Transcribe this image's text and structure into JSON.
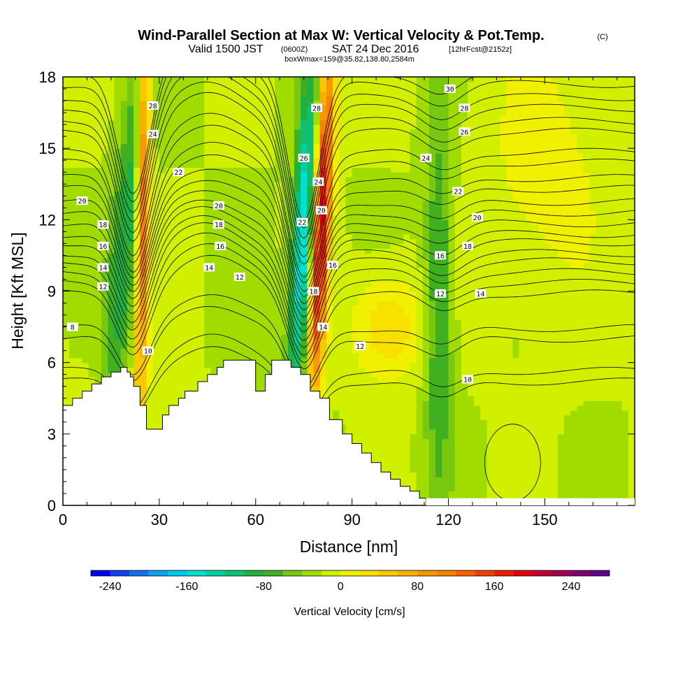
{
  "chart_data": {
    "type": "heatmap",
    "title": "Wind-Parallel Section at Max W: Vertical Velocity & Pot.Temp.",
    "title_mark": "(C)",
    "subtitle": "Valid 1500 JST",
    "subtitle_z": "(0600Z)",
    "subtitle_date": "SAT 24 Dec 2016",
    "subtitle_fcst": "[12hrFcst@2152z]",
    "subtitle2": "boxWmax=159@35.82,138.80,2584m",
    "xlabel": "Distance [nm]",
    "ylabel": "Height [Kft MSL]",
    "xlim": [
      0,
      178
    ],
    "ylim": [
      0,
      18
    ],
    "xticks": [
      0,
      30,
      60,
      90,
      120,
      150
    ],
    "yticks": [
      0,
      3,
      6,
      9,
      12,
      15,
      18
    ],
    "colorbar": {
      "label": "Vertical Velocity [cm/s]",
      "tick_values": [
        -240,
        -160,
        -80,
        0,
        80,
        160,
        240
      ],
      "tick_labels": [
        "-240",
        "-160",
        "-80",
        "0",
        "80",
        "160",
        "240"
      ],
      "min": -260,
      "step": 20,
      "colors": [
        "#0000f0",
        "#1040f0",
        "#1070f0",
        "#10a0f0",
        "#00c8f0",
        "#00e0d0",
        "#00d0a0",
        "#10c070",
        "#20b040",
        "#40b020",
        "#78c810",
        "#a0dc00",
        "#d0f000",
        "#f0f000",
        "#f8e000",
        "#f8c800",
        "#f8b000",
        "#f89800",
        "#f88000",
        "#f86000",
        "#f04000",
        "#e82000",
        "#e00010",
        "#c00030",
        "#a00050",
        "#800070",
        "#600088"
      ]
    },
    "terrain": [
      [
        0,
        4.2
      ],
      [
        3,
        4.2
      ],
      [
        3,
        4.5
      ],
      [
        6,
        4.5
      ],
      [
        6,
        4.8
      ],
      [
        9,
        4.8
      ],
      [
        9,
        5.1
      ],
      [
        12,
        5.1
      ],
      [
        12,
        5.4
      ],
      [
        15,
        5.4
      ],
      [
        15,
        5.6
      ],
      [
        18,
        5.6
      ],
      [
        18,
        5.8
      ],
      [
        20,
        5.8
      ],
      [
        20,
        5.6
      ],
      [
        21,
        5.6
      ],
      [
        21,
        5.4
      ],
      [
        22,
        5.4
      ],
      [
        22,
        5.0
      ],
      [
        24,
        5.0
      ],
      [
        24,
        4.2
      ],
      [
        26,
        4.2
      ],
      [
        26,
        3.2
      ],
      [
        31,
        3.2
      ],
      [
        31,
        3.8
      ],
      [
        33,
        3.8
      ],
      [
        33,
        4.2
      ],
      [
        36,
        4.2
      ],
      [
        36,
        4.5
      ],
      [
        38,
        4.5
      ],
      [
        38,
        4.8
      ],
      [
        42,
        4.8
      ],
      [
        42,
        5.2
      ],
      [
        45,
        5.2
      ],
      [
        45,
        5.5
      ],
      [
        48,
        5.5
      ],
      [
        48,
        5.8
      ],
      [
        50,
        5.8
      ],
      [
        50,
        6.1
      ],
      [
        60,
        6.1
      ],
      [
        60,
        4.8
      ],
      [
        63,
        4.8
      ],
      [
        63,
        5.5
      ],
      [
        65,
        5.5
      ],
      [
        65,
        6.1
      ],
      [
        71,
        6.1
      ],
      [
        71,
        5.8
      ],
      [
        74,
        5.8
      ],
      [
        74,
        5.5
      ],
      [
        77,
        5.5
      ],
      [
        77,
        4.8
      ],
      [
        80,
        4.8
      ],
      [
        80,
        4.5
      ],
      [
        83,
        4.5
      ],
      [
        83,
        3.6
      ],
      [
        87,
        3.6
      ],
      [
        87,
        3.0
      ],
      [
        90,
        3.0
      ],
      [
        90,
        2.6
      ],
      [
        93,
        2.6
      ],
      [
        93,
        2.2
      ],
      [
        96,
        2.2
      ],
      [
        96,
        1.8
      ],
      [
        99,
        1.8
      ],
      [
        99,
        1.4
      ],
      [
        102,
        1.4
      ],
      [
        102,
        1.1
      ],
      [
        105,
        1.1
      ],
      [
        105,
        0.8
      ],
      [
        108,
        0.8
      ],
      [
        108,
        0.6
      ],
      [
        111,
        0.6
      ],
      [
        111,
        0.3
      ],
      [
        113,
        0.3
      ],
      [
        113,
        0
      ]
    ],
    "theta_levels": [
      8,
      10,
      12,
      14,
      16,
      18,
      20,
      22,
      24,
      26,
      28,
      30
    ],
    "theta_base_heights": [
      7.0,
      5.2,
      8.9,
      9.8,
      10.6,
      11.4,
      12.3,
      13.3,
      14.4,
      15.7,
      16.7,
      17.7
    ],
    "contour_labels": [
      {
        "text": "30",
        "x": 120.5,
        "y": 17.5
      },
      {
        "text": "28",
        "x": 28.0,
        "y": 16.8
      },
      {
        "text": "28",
        "x": 79.0,
        "y": 16.7
      },
      {
        "text": "28",
        "x": 125.0,
        "y": 16.7
      },
      {
        "text": "26",
        "x": 125.0,
        "y": 15.7
      },
      {
        "text": "24",
        "x": 28.0,
        "y": 15.6
      },
      {
        "text": "26",
        "x": 75.0,
        "y": 14.6
      },
      {
        "text": "24",
        "x": 113.0,
        "y": 14.6
      },
      {
        "text": "22",
        "x": 36.0,
        "y": 14.0
      },
      {
        "text": "24",
        "x": 79.5,
        "y": 13.6
      },
      {
        "text": "22",
        "x": 123.0,
        "y": 13.2
      },
      {
        "text": "20",
        "x": 6.0,
        "y": 12.8
      },
      {
        "text": "20",
        "x": 48.5,
        "y": 12.6
      },
      {
        "text": "20",
        "x": 80.5,
        "y": 12.4
      },
      {
        "text": "20",
        "x": 129.0,
        "y": 12.1
      },
      {
        "text": "18",
        "x": 12.5,
        "y": 11.8
      },
      {
        "text": "22",
        "x": 74.5,
        "y": 11.9
      },
      {
        "text": "18",
        "x": 48.5,
        "y": 11.8
      },
      {
        "text": "16",
        "x": 12.5,
        "y": 10.9
      },
      {
        "text": "16",
        "x": 49.0,
        "y": 10.9
      },
      {
        "text": "18",
        "x": 126.0,
        "y": 10.9
      },
      {
        "text": "16",
        "x": 117.5,
        "y": 10.5
      },
      {
        "text": "16",
        "x": 84.0,
        "y": 10.1
      },
      {
        "text": "14",
        "x": 12.5,
        "y": 10.0
      },
      {
        "text": "14",
        "x": 45.5,
        "y": 10.0
      },
      {
        "text": "12",
        "x": 55.0,
        "y": 9.6
      },
      {
        "text": "12",
        "x": 12.5,
        "y": 9.2
      },
      {
        "text": "18",
        "x": 78.0,
        "y": 9.0
      },
      {
        "text": "12",
        "x": 117.5,
        "y": 8.9
      },
      {
        "text": "14",
        "x": 130.0,
        "y": 8.9
      },
      {
        "text": "8",
        "x": 3.0,
        "y": 7.5
      },
      {
        "text": "14",
        "x": 81.0,
        "y": 7.5
      },
      {
        "text": "12",
        "x": 92.5,
        "y": 6.7
      },
      {
        "text": "10",
        "x": 26.5,
        "y": 6.5
      },
      {
        "text": "10",
        "x": 126.0,
        "y": 5.3
      }
    ]
  }
}
